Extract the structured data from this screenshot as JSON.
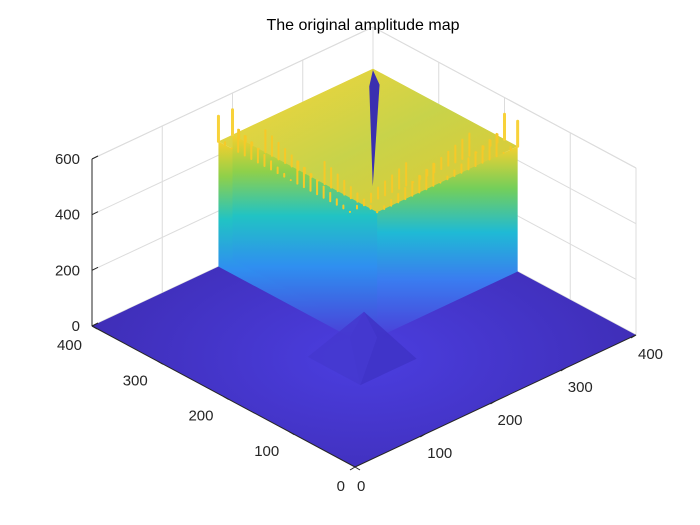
{
  "chart_data": {
    "type": "surface",
    "title": "The original amplitude map",
    "xlabel": "",
    "ylabel": "",
    "zlabel": "",
    "xlim": [
      0,
      400
    ],
    "ylim": [
      0,
      400
    ],
    "zlim": [
      0,
      600
    ],
    "x_ticks": [
      "0",
      "100",
      "200",
      "300",
      "400"
    ],
    "y_ticks": [
      "0",
      "100",
      "200",
      "300",
      "400"
    ],
    "z_ticks": [
      "0",
      "200",
      "400",
      "600"
    ],
    "grid": true,
    "colormap": "parula",
    "surface": {
      "description": "two square plateaus of amplitude ~450 near the back corner, separated by a narrow notch; floor near 0",
      "plateau_level": 450,
      "peak_spikes_max": 540,
      "plateau_1": {
        "x_range": [
          180,
          400
        ],
        "y_range": [
          200,
          400
        ]
      },
      "plateau_2": {
        "x_range": [
          200,
          400
        ],
        "y_range": [
          180,
          400
        ]
      }
    },
    "colors": {
      "low": "#3d26a8",
      "mid": "#22b8e4",
      "high": "#f8d125",
      "grid": "#dcdcdc",
      "axis": "#262626"
    }
  }
}
